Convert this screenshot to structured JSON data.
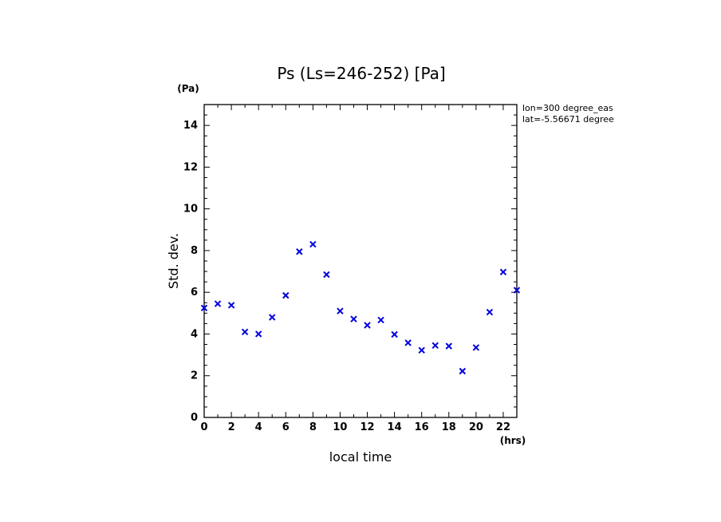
{
  "chart_data": {
    "type": "scatter",
    "title": "Ps (Ls=246-252) [Pa]",
    "xlabel": "local time",
    "ylabel": "Std. dev.",
    "x_unit": "(hrs)",
    "y_unit": "(Pa)",
    "xlim": [
      0,
      23
    ],
    "ylim": [
      0,
      15
    ],
    "x_ticks": [
      0,
      2,
      4,
      6,
      8,
      10,
      12,
      14,
      16,
      18,
      20,
      22
    ],
    "y_ticks": [
      0,
      2,
      4,
      6,
      8,
      10,
      12,
      14
    ],
    "grid": false,
    "marker": "x",
    "marker_color": "#0000dd",
    "annotations": [
      "lon=300 degree_eas",
      "lat=-5.56671 degree"
    ],
    "points": [
      {
        "x": 0,
        "y": 5.25
      },
      {
        "x": 1,
        "y": 5.45
      },
      {
        "x": 2,
        "y": 5.38
      },
      {
        "x": 3,
        "y": 4.1
      },
      {
        "x": 4,
        "y": 4.0
      },
      {
        "x": 5,
        "y": 4.8
      },
      {
        "x": 6,
        "y": 5.85
      },
      {
        "x": 7,
        "y": 7.95
      },
      {
        "x": 8,
        "y": 8.3
      },
      {
        "x": 9,
        "y": 6.85
      },
      {
        "x": 10,
        "y": 5.1
      },
      {
        "x": 11,
        "y": 4.72
      },
      {
        "x": 12,
        "y": 4.42
      },
      {
        "x": 13,
        "y": 4.67
      },
      {
        "x": 14,
        "y": 3.98
      },
      {
        "x": 15,
        "y": 3.58
      },
      {
        "x": 16,
        "y": 3.22
      },
      {
        "x": 17,
        "y": 3.45
      },
      {
        "x": 18,
        "y": 3.42
      },
      {
        "x": 19,
        "y": 2.22
      },
      {
        "x": 20,
        "y": 3.35
      },
      {
        "x": 21,
        "y": 5.05
      },
      {
        "x": 22,
        "y": 6.97
      },
      {
        "x": 23,
        "y": 6.1
      }
    ]
  }
}
